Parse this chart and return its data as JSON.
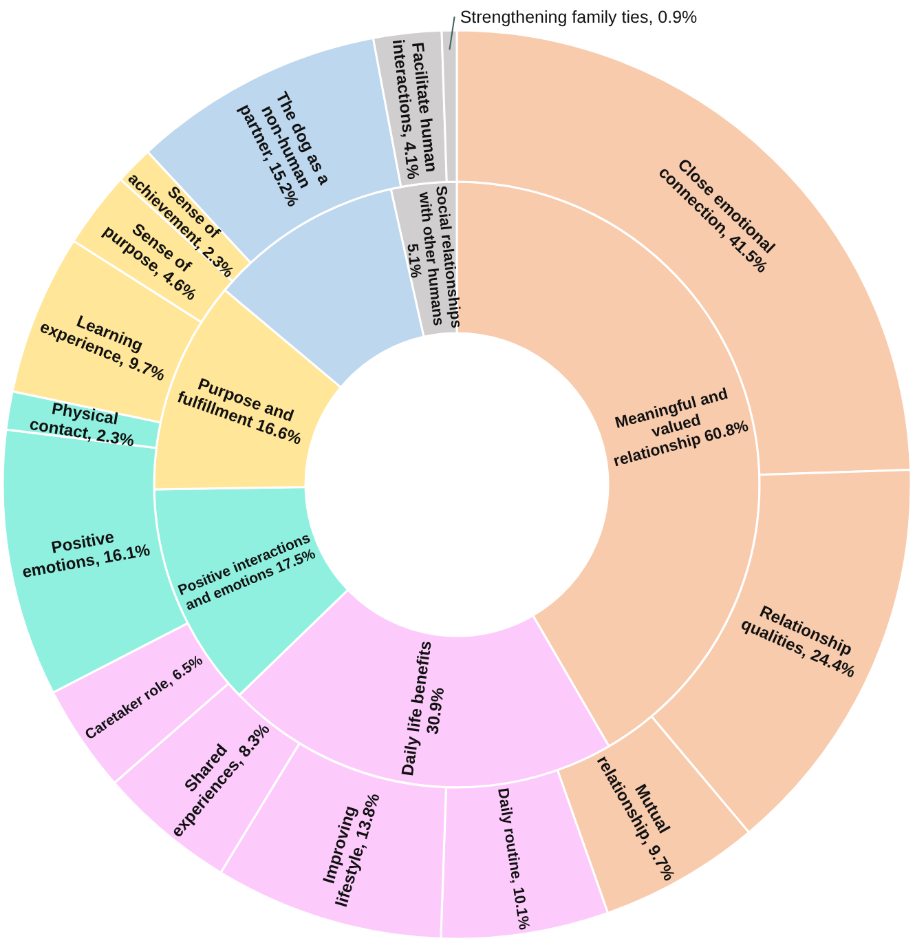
{
  "chart_data": [
    {
      "type": "donut",
      "categories": [
        "Meaningful and valued relationship",
        "Daily life benefits",
        "Positive interactions and emotions",
        "Purpose and fulfillment",
        null,
        "Social relationships with other humans"
      ],
      "values": [
        60.8,
        30.9,
        17.5,
        16.6,
        15.2,
        5.1
      ],
      "value_labels": [
        "60.8%",
        "30.9%",
        "17.5%",
        "16.6%",
        null,
        "5.1%"
      ],
      "colors": [
        "#f8cbad",
        "#fccbfc",
        "#90f0e0",
        "#ffe699",
        "#bdd7ee",
        "#d0cece"
      ]
    },
    {
      "type": "donut",
      "categories": [
        "Close emotional connection",
        "Relationship qualities",
        "Mutual relationship",
        "Daily routine",
        "Improving lifestyle",
        "Shared experiences",
        "Caretaker role",
        "Positive emotions",
        "Physical contact",
        "Learning experience",
        "Sense of purpose",
        "Sense of achievement",
        "The dog as a non-human partner",
        "Facilitate human interactions",
        "Strengthening family ties"
      ],
      "values": [
        41.5,
        24.4,
        9.7,
        10.1,
        13.8,
        8.3,
        6.5,
        16.1,
        2.3,
        9.7,
        4.6,
        2.3,
        15.2,
        4.1,
        0.9
      ],
      "value_labels": [
        "41.5%",
        "24.4%",
        "9.7%",
        "10.1%",
        "13.8%",
        "8.3%",
        "6.5%",
        "16.1%",
        "2.3%",
        "9.7%",
        "4.6%",
        "2.3%",
        "15.2%",
        "4.1%",
        "0.9%"
      ],
      "colors": [
        "#f8cbad",
        "#f8cbad",
        "#f8cbad",
        "#fccbfc",
        "#fccbfc",
        "#fccbfc",
        "#fccbfc",
        "#90f0e0",
        "#90f0e0",
        "#ffe699",
        "#ffe699",
        "#ffe699",
        "#bdd7ee",
        "#d0cece",
        "#d0cece"
      ]
    }
  ]
}
